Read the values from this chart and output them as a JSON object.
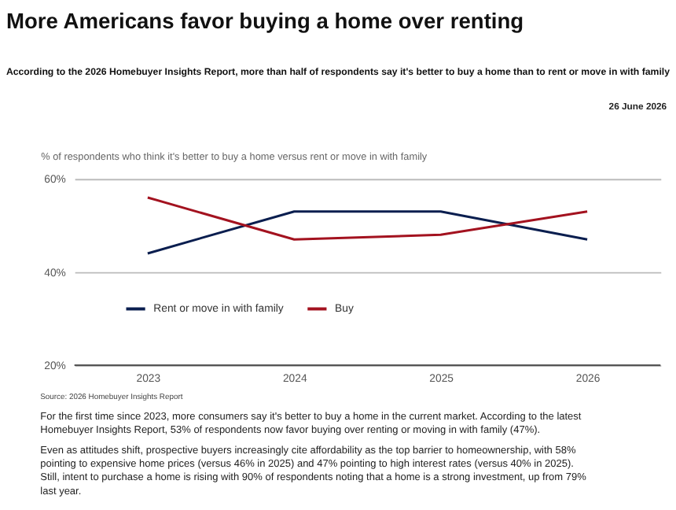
{
  "chart_data": {
    "type": "line",
    "title": "More Americans favor buying a home over renting",
    "subtitle": "According to the 2026 Homebuyer Insights Report, more than half of respondents say it's better to buy a home than to rent or move in with family",
    "ylabel": "% of respondents who think it's better to buy a home versus rent or move in with family",
    "categories": [
      "2023",
      "2024",
      "2025",
      "2026"
    ],
    "series": [
      {
        "name": "Rent or move in with family",
        "color": "#0a1e4f",
        "values": [
          44,
          53,
          53,
          47
        ]
      },
      {
        "name": "Buy",
        "color": "#a3121f",
        "values": [
          56,
          47,
          48,
          53
        ]
      }
    ],
    "ylim": [
      20,
      60
    ],
    "yticks": [
      {
        "value": 20,
        "label": "20%"
      },
      {
        "value": 40,
        "label": "40%"
      },
      {
        "value": 60,
        "label": "60%"
      }
    ],
    "grid": "y",
    "legend": "bottom left",
    "marker": "none",
    "line_style": "solid",
    "annotations": [
      "26 June 2026",
      "Source: 2026 Homebuyer Insights Report",
      "For the first time since 2023, more consumers say it's better to buy a home in the current market. According to the latest Homebuyer Insights Report, 53% of respondents now favor buying over renting or moving in with family (47%).",
      "Even as attitudes shift, prospective buyers increasingly cite affordability as the top barrier to homeownership, with 58% pointing to expensive home prices (versus 46% in 2025) and 47% pointing to high interest rates (versus 40% in 2025). Still, intent to purchase a home is rising with 90% of respondents noting that a home is a strong investment, up from 79% last year."
    ]
  }
}
